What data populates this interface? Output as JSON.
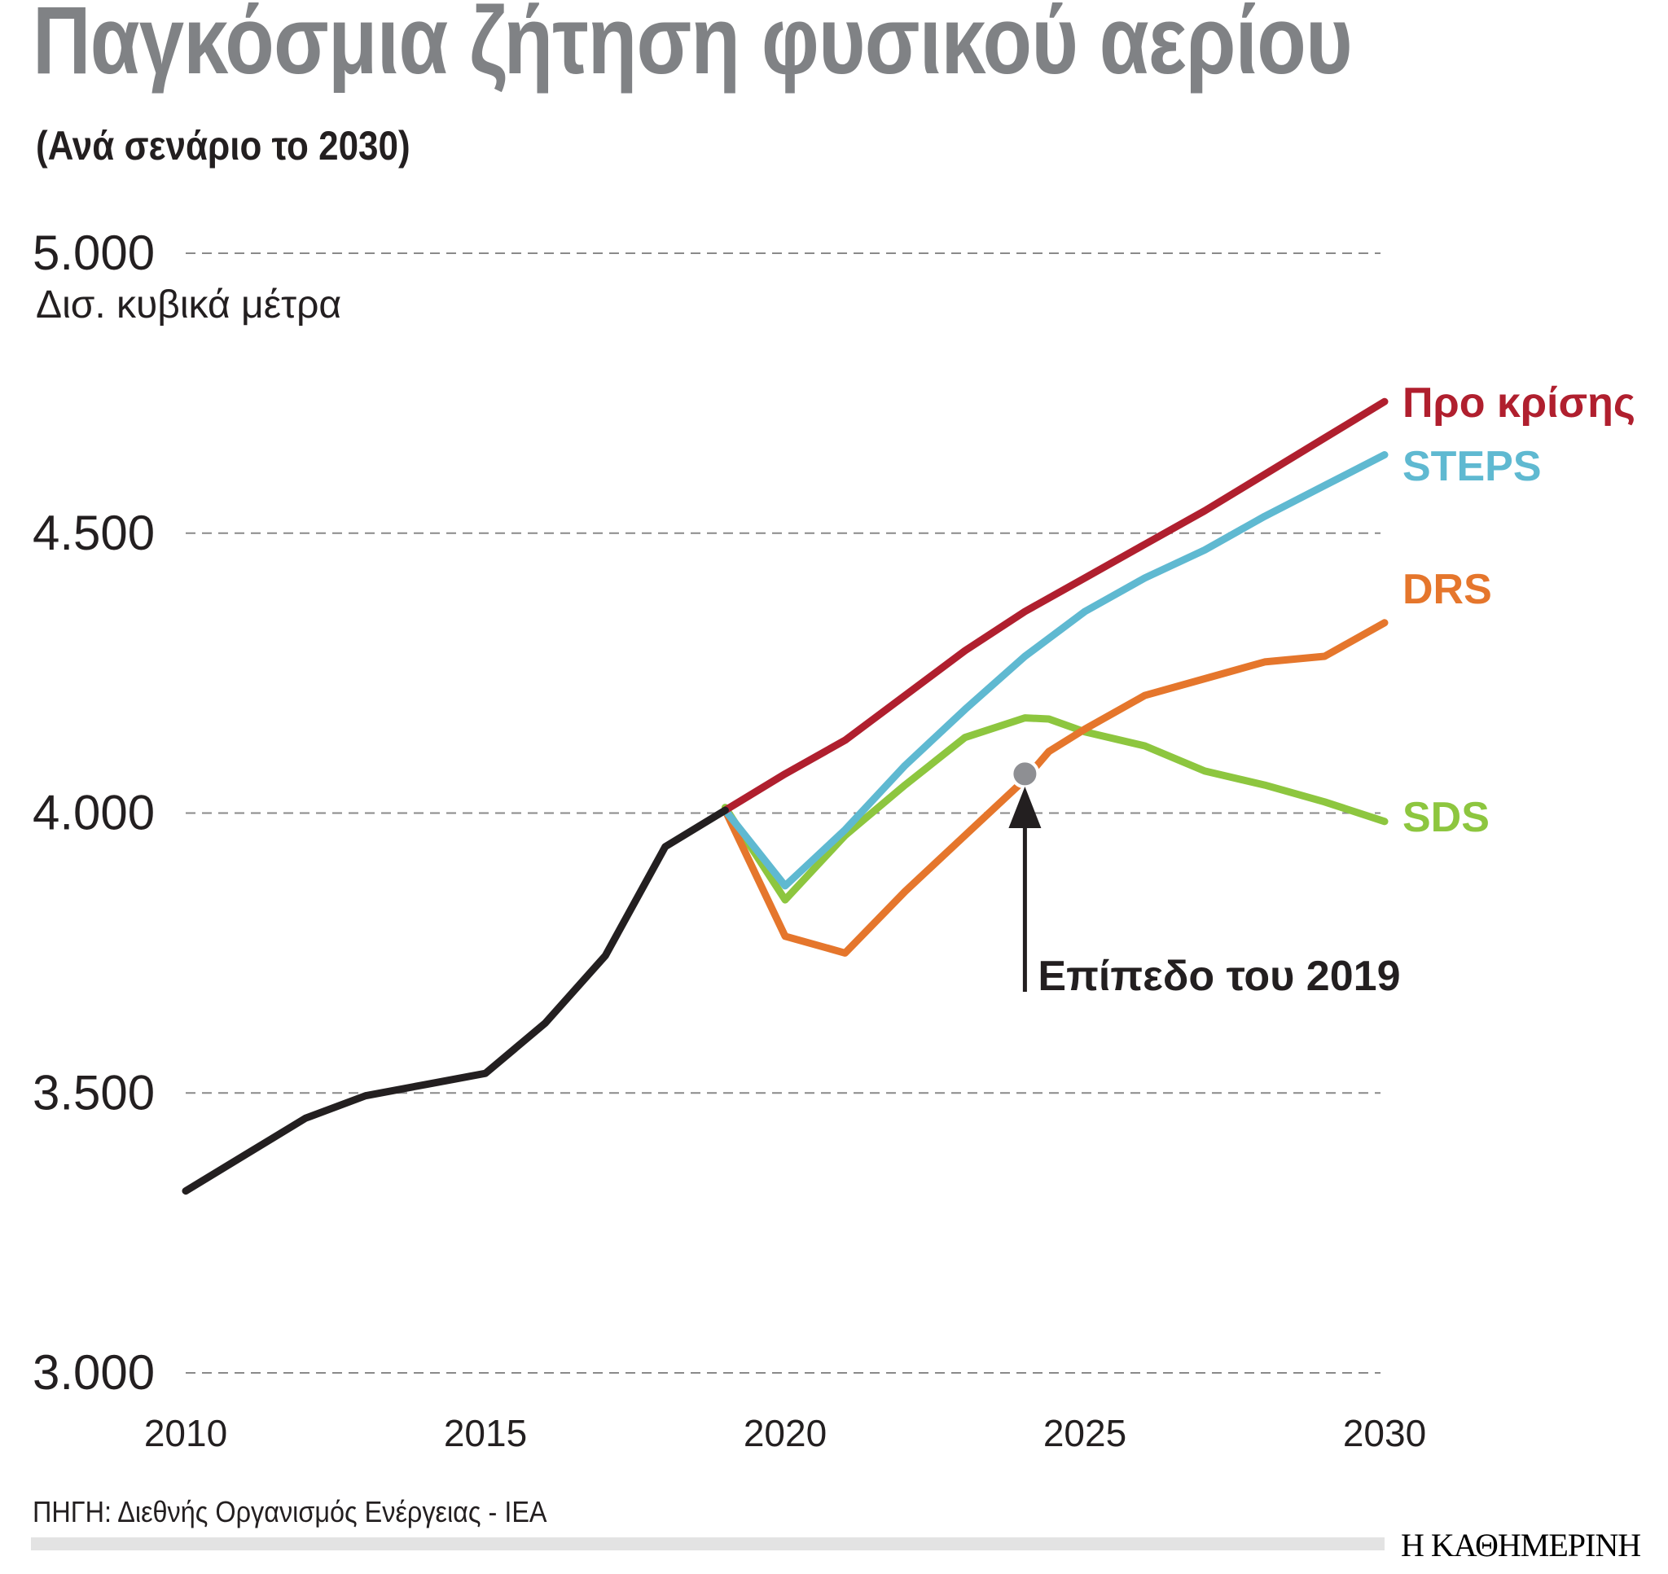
{
  "chart_data": {
    "type": "line",
    "title": "Παγκόσμια ζήτηση φυσικού αερίου",
    "subtitle": "(Ανά σενάριο το 2030)",
    "ylabel": "Δισ. κυβικά μέτρα",
    "xlabel": "",
    "xlim": [
      2010,
      2030
    ],
    "ylim": [
      3000,
      5000
    ],
    "xticks": [
      "2010",
      "2015",
      "2020",
      "2025",
      "2030"
    ],
    "yticks": [
      "3.000",
      "3.500",
      "4.000",
      "4.500",
      "5.000"
    ],
    "ytick_values": [
      3000,
      3500,
      4000,
      4500,
      5000
    ],
    "grid": true,
    "series": [
      {
        "name": "",
        "color": "#231f20",
        "x": [
          2010,
          2011,
          2012,
          2013,
          2014,
          2015,
          2016,
          2017,
          2018,
          2019
        ],
        "values": [
          3325,
          3390,
          3455,
          3495,
          3515,
          3535,
          3625,
          3745,
          3940,
          4005
        ]
      },
      {
        "name": "Προ κρίσης",
        "color": "#b01f2e",
        "x": [
          2019,
          2020,
          2021,
          2022,
          2023,
          2024,
          2025,
          2026,
          2027,
          2028,
          2029,
          2030
        ],
        "values": [
          4005,
          4070,
          4130,
          4210,
          4290,
          4360,
          4420,
          4480,
          4540,
          4605,
          4670,
          4735
        ]
      },
      {
        "name": "STEPS",
        "color": "#5fb9d1",
        "x": [
          2019,
          2020,
          2021,
          2022,
          2023,
          2024,
          2025,
          2026,
          2027,
          2028,
          2029,
          2030
        ],
        "values": [
          4005,
          3870,
          3970,
          4085,
          4185,
          4280,
          4360,
          4420,
          4470,
          4530,
          4585,
          4640
        ]
      },
      {
        "name": "DRS",
        "color": "#e5762c",
        "x": [
          2019,
          2020,
          2021,
          2022,
          2023,
          2024,
          2024.4,
          2025,
          2026,
          2027,
          2028,
          2029,
          2030
        ],
        "values": [
          4005,
          3780,
          3750,
          3860,
          3960,
          4060,
          4110,
          4150,
          4210,
          4240,
          4270,
          4280,
          4340
        ]
      },
      {
        "name": "SDS",
        "color": "#8dc63f",
        "x": [
          2019,
          2020,
          2021,
          2022,
          2023,
          2024,
          2024.4,
          2025,
          2026,
          2027,
          2028,
          2029,
          2030
        ],
        "values": [
          4010,
          3845,
          3960,
          4050,
          4135,
          4170,
          4168,
          4145,
          4120,
          4075,
          4050,
          4020,
          3985
        ]
      }
    ],
    "annotation": {
      "text": "Επίπεδο του 2019",
      "marker_x": 2024,
      "marker_y": 4070,
      "marker_color": "#8e8f93"
    }
  },
  "source": "ΠΗΓΗ: Διεθνής Οργανισμός Ενέργειας - IEA",
  "brand": "Η ΚΑΘΗΜΕΡΙΝΗ"
}
